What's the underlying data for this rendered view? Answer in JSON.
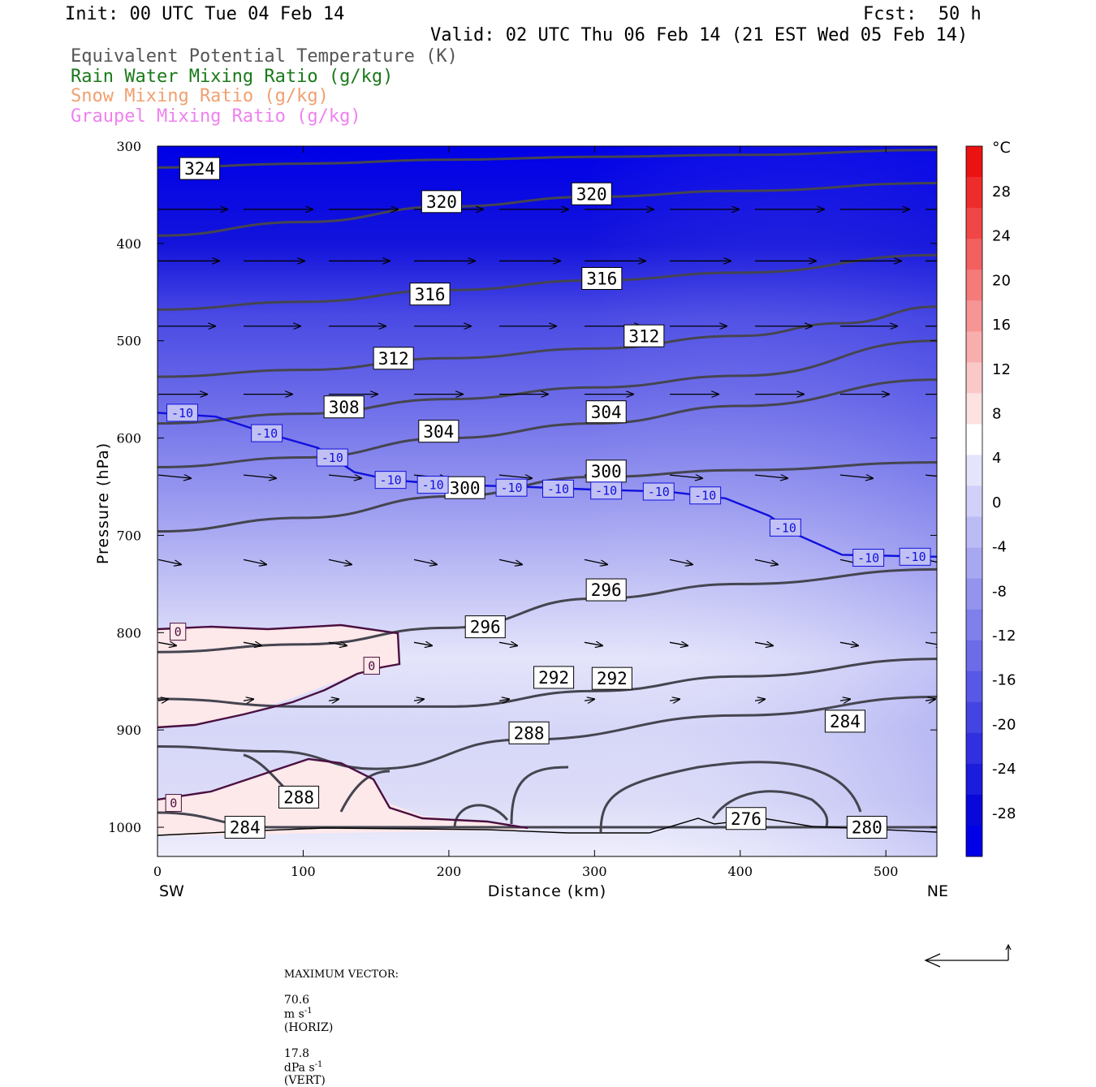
{
  "header": {
    "init": "Init: 00 UTC Tue 04 Feb 14",
    "fcst": "Fcst:  50 h",
    "valid": "Valid: 02 UTC Thu 06 Feb 14 (21 EST Wed 05 Feb 14)"
  },
  "fields": [
    {
      "label": "Equivalent Potential Temperature (K)",
      "color": "#555555"
    },
    {
      "label": "Rain Water Mixing Ratio (g/kg)",
      "color": "#1a7a1a"
    },
    {
      "label": "Snow Mixing Ratio (g/kg)",
      "color": "#f0a070"
    },
    {
      "label": "Graupel Mixing Ratio (g/kg)",
      "color": "#ee82ee"
    }
  ],
  "footer": {
    "max_vector_label": "MAXIMUM VECTOR:",
    "horiz_value": "70.6",
    "horiz_unit": "m s",
    "horiz_exp": "-1",
    "horiz_tag": "(HORIZ)",
    "vert_value": "17.8",
    "vert_unit": "dPa s",
    "vert_exp": "-1",
    "vert_tag": "(VERT)"
  },
  "chart_data": {
    "type": "heatmap",
    "title": "",
    "xlabel": "Distance (km)",
    "ylabel": "Pressure (hPa)",
    "xlim": [
      0,
      535
    ],
    "ylim": [
      1030,
      300
    ],
    "x_ticks": [
      0,
      100,
      200,
      300,
      400,
      500
    ],
    "y_ticks": [
      300,
      400,
      500,
      600,
      700,
      800,
      900,
      1000
    ],
    "x_end_labels": {
      "left": "SW",
      "right": "NE"
    },
    "colorbar": {
      "unit": "°C",
      "ticks": [
        28,
        24,
        20,
        16,
        12,
        8,
        4,
        0,
        -4,
        -8,
        -12,
        -16,
        -20,
        -24,
        -28
      ],
      "colors_warm": [
        "#ffffff",
        "#fde2e2",
        "#fbc8c8",
        "#f9aeae",
        "#f79494",
        "#f57a7a",
        "#f36060",
        "#f14646",
        "#ef2c2c",
        "#ed1212"
      ],
      "colors_cold": [
        "#ffffff",
        "#e4e4fb",
        "#d0d0f8",
        "#bcbcf5",
        "#a8a8f2",
        "#9494ef",
        "#8080ec",
        "#6c6ce9",
        "#5858e6",
        "#4444e3",
        "#3030e0",
        "#1c1cdd",
        "#0808da",
        "#0000e8"
      ]
    },
    "theta_e_contours": [
      {
        "label": "324",
        "points": [
          [
            0,
            322
          ],
          [
            100,
            318
          ],
          [
            200,
            314
          ],
          [
            300,
            311
          ],
          [
            400,
            309
          ],
          [
            535,
            304
          ]
        ],
        "label_at": [
          29,
          323
        ]
      },
      {
        "label": "320",
        "points": [
          [
            0,
            392
          ],
          [
            100,
            378
          ],
          [
            200,
            362
          ],
          [
            300,
            352
          ],
          [
            400,
            346
          ],
          [
            535,
            338
          ]
        ],
        "label_at": [
          195,
          357
        ]
      },
      {
        "label": "320",
        "points": [],
        "label_at": [
          298,
          349
        ]
      },
      {
        "label": "316",
        "points": [
          [
            0,
            468
          ],
          [
            100,
            460
          ],
          [
            200,
            448
          ],
          [
            300,
            438
          ],
          [
            400,
            430
          ],
          [
            535,
            412
          ]
        ],
        "label_at": [
          187,
          452
        ]
      },
      {
        "label": "316",
        "points": [],
        "label_at": [
          305,
          436
        ]
      },
      {
        "label": "312",
        "points": [
          [
            0,
            537
          ],
          [
            100,
            530
          ],
          [
            200,
            518
          ],
          [
            300,
            508
          ],
          [
            400,
            495
          ],
          [
            470,
            482
          ],
          [
            535,
            465
          ]
        ],
        "label_at": [
          162,
          518
        ]
      },
      {
        "label": "312",
        "points": [],
        "label_at": [
          334,
          495
        ]
      },
      {
        "label": "308",
        "points": [
          [
            0,
            585
          ],
          [
            100,
            575
          ],
          [
            200,
            560
          ],
          [
            300,
            548
          ],
          [
            400,
            536
          ],
          [
            535,
            500
          ]
        ],
        "label_at": [
          128,
          568
        ]
      },
      {
        "label": "304",
        "points": [
          [
            0,
            630
          ],
          [
            100,
            620
          ],
          [
            200,
            600
          ],
          [
            300,
            585
          ],
          [
            400,
            567
          ],
          [
            535,
            540
          ]
        ],
        "label_at": [
          193,
          593
        ]
      },
      {
        "label": "304",
        "points": [],
        "label_at": [
          308,
          573
        ]
      },
      {
        "label": "300",
        "points": [
          [
            0,
            696
          ],
          [
            100,
            682
          ],
          [
            200,
            660
          ],
          [
            300,
            640
          ],
          [
            400,
            633
          ],
          [
            535,
            625
          ]
        ],
        "label_at": [
          211,
          651
        ]
      },
      {
        "label": "300",
        "points": [],
        "label_at": [
          308,
          634
        ]
      },
      {
        "label": "296",
        "points": [
          [
            0,
            820
          ],
          [
            100,
            812
          ],
          [
            200,
            795
          ],
          [
            300,
            765
          ],
          [
            400,
            750
          ],
          [
            535,
            735
          ]
        ],
        "label_at": [
          225,
          794
        ]
      },
      {
        "label": "296",
        "points": [],
        "label_at": [
          308,
          756
        ]
      },
      {
        "label": "292",
        "points": [
          [
            0,
            868
          ],
          [
            100,
            876
          ],
          [
            200,
            876
          ],
          [
            300,
            860
          ],
          [
            400,
            845
          ],
          [
            535,
            827
          ]
        ],
        "label_at": [
          272,
          846
        ]
      },
      {
        "label": "292",
        "points": [],
        "label_at": [
          312,
          847
        ]
      },
      {
        "label": "288",
        "points": [
          [
            0,
            917
          ],
          [
            80,
            922
          ],
          [
            150,
            940
          ],
          [
            250,
            910
          ],
          [
            400,
            885
          ],
          [
            535,
            866
          ]
        ],
        "label_at": [
          255,
          903
        ]
      },
      {
        "label": "284",
        "points": [
          [
            0,
            985
          ],
          [
            80,
            1000
          ],
          [
            200,
            1000
          ],
          [
            300,
            1000
          ],
          [
            400,
            1000
          ],
          [
            535,
            1000
          ]
        ],
        "label_at": [
          60,
          1000
        ]
      },
      {
        "label": "284",
        "points": [],
        "label_at": [
          472,
          891
        ]
      },
      {
        "label": "288",
        "points": [],
        "label_at": [
          97,
          969
        ]
      },
      {
        "label": "276",
        "points": [],
        "label_at": [
          404,
          991
        ]
      },
      {
        "label": "280",
        "points": [],
        "label_at": [
          487,
          1000
        ]
      }
    ],
    "isotherm_labels": [
      {
        "label": "-10",
        "at": [
          17,
          574
        ]
      },
      {
        "label": "-10",
        "at": [
          75,
          595
        ]
      },
      {
        "label": "-10",
        "at": [
          120,
          620
        ]
      },
      {
        "label": "-10",
        "at": [
          160,
          643
        ]
      },
      {
        "label": "-10",
        "at": [
          189,
          648
        ]
      },
      {
        "label": "-10",
        "at": [
          243,
          651
        ]
      },
      {
        "label": "-10",
        "at": [
          275,
          652
        ]
      },
      {
        "label": "-10",
        "at": [
          308,
          654
        ]
      },
      {
        "label": "-10",
        "at": [
          344,
          655
        ]
      },
      {
        "label": "-10",
        "at": [
          376,
          659
        ]
      },
      {
        "label": "-10",
        "at": [
          431,
          692
        ]
      },
      {
        "label": "-10",
        "at": [
          488,
          723
        ]
      },
      {
        "label": "-10",
        "at": [
          520,
          722
        ]
      },
      {
        "label": "0",
        "at": [
          14,
          799
        ]
      },
      {
        "label": "0",
        "at": [
          147,
          834
        ]
      },
      {
        "label": "0",
        "at": [
          11,
          975
        ]
      }
    ]
  }
}
